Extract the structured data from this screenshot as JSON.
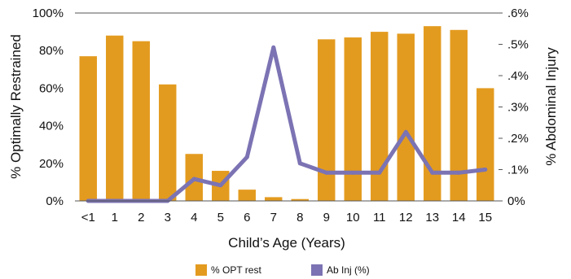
{
  "chart_data": {
    "type": "bar",
    "categories": [
      "<1",
      "1",
      "2",
      "3",
      "4",
      "5",
      "6",
      "7",
      "8",
      "9",
      "10",
      "11",
      "12",
      "13",
      "14",
      "15"
    ],
    "series": [
      {
        "name": "% OPT rest",
        "type": "bar",
        "axis": "left",
        "color": "#E39B1F",
        "values": [
          77,
          88,
          85,
          62,
          25,
          16,
          6,
          2,
          1,
          86,
          87,
          90,
          89,
          93,
          91,
          60
        ]
      },
      {
        "name": "Ab Inj (%)",
        "type": "line",
        "axis": "right",
        "color": "#7B73B3",
        "values": [
          0.0,
          0.0,
          0.0,
          0.0,
          0.07,
          0.05,
          0.14,
          0.49,
          0.12,
          0.09,
          0.09,
          0.09,
          0.22,
          0.09,
          0.09,
          0.1
        ]
      }
    ],
    "xlabel": "Child’s Age (Years)",
    "ylabel": "% Optimally Restrained",
    "y2label": "% Abdominal Injury",
    "ylim": [
      0,
      100
    ],
    "y2lim": [
      0,
      0.6
    ],
    "yticks": [
      "0%",
      "20%",
      "40%",
      "60%",
      "80%",
      "100%"
    ],
    "y2ticks": [
      "0%",
      ".1%",
      ".2%",
      ".3%",
      ".4%",
      ".5%",
      ".6%"
    ],
    "grid": false,
    "legend": "bottom-center"
  }
}
